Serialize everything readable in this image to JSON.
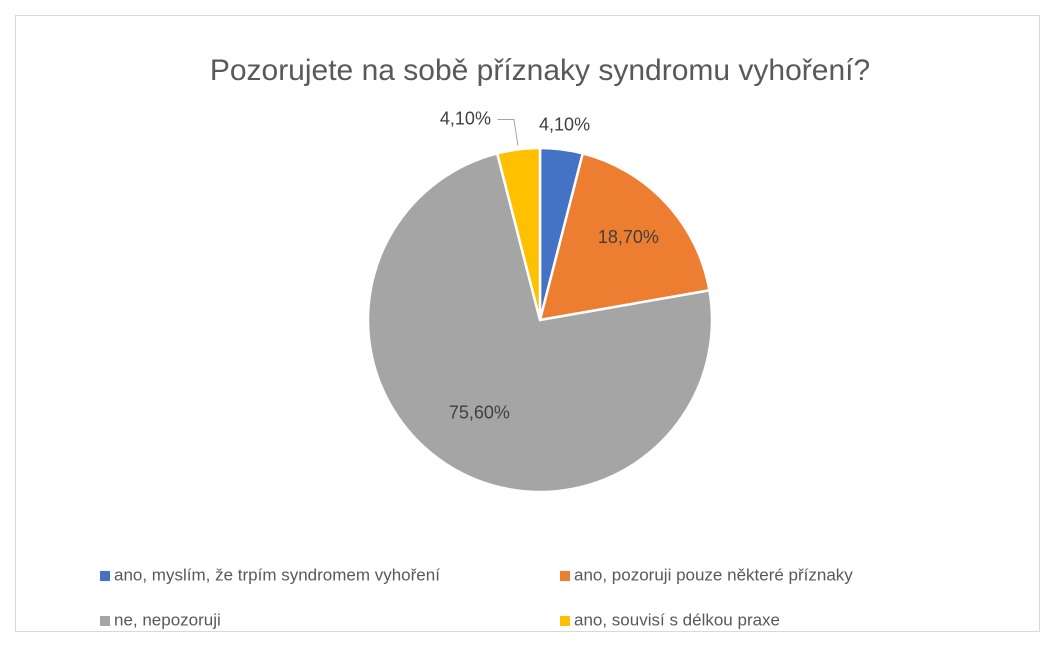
{
  "chart_data": {
    "type": "pie",
    "title": "Pozorujete na sobě příznaky syndromu vyhoření?",
    "categories": [
      "ano, myslím, že trpím syndromem vyhoření",
      "ano, pozoruji pouze některé příznaky",
      "ne, nepozoruji",
      "ano, souvisí s délkou praxe"
    ],
    "values": [
      4.1,
      18.7,
      75.6,
      4.1
    ],
    "value_labels": [
      "4,10%",
      "18,70%",
      "75,60%",
      "4,10%"
    ],
    "colors": [
      "#4472c4",
      "#ed7d31",
      "#a5a5a5",
      "#ffc000"
    ],
    "legend": "bottom"
  }
}
